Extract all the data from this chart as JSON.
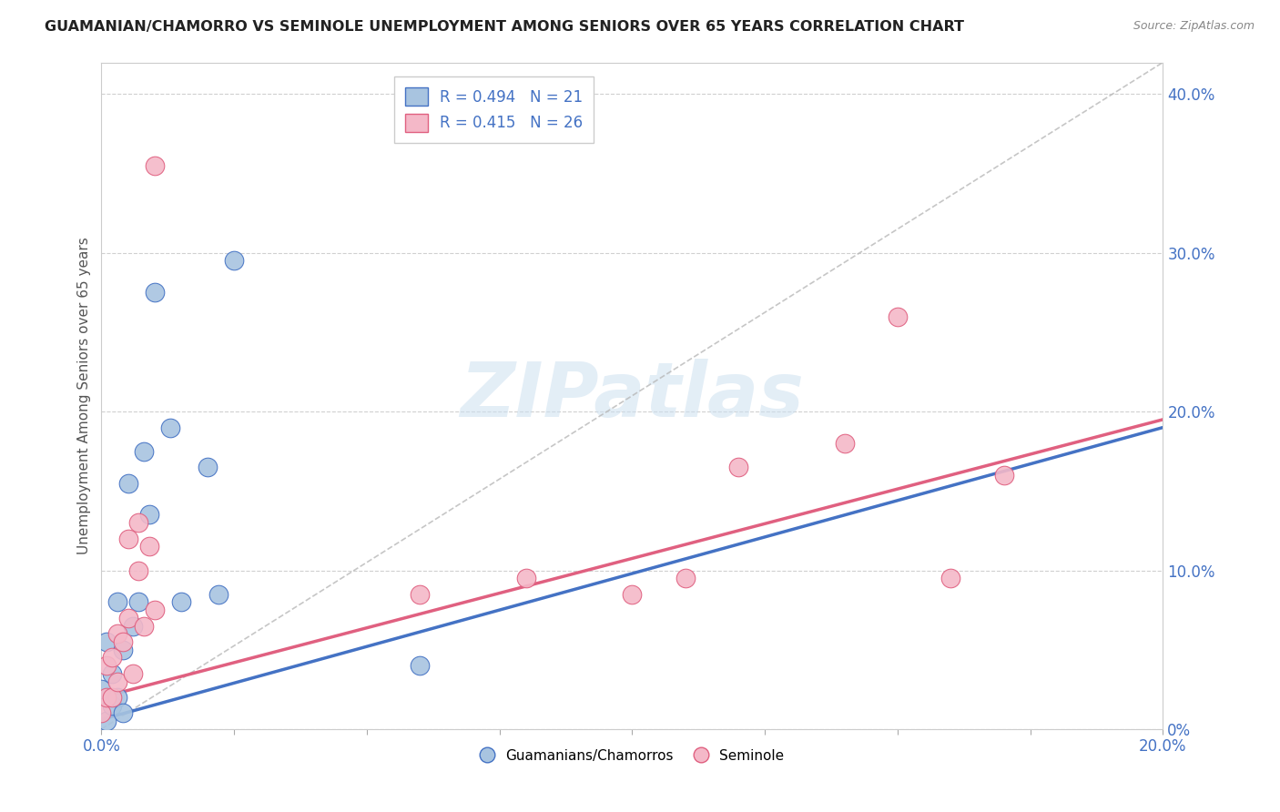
{
  "title": "GUAMANIAN/CHAMORRO VS SEMINOLE UNEMPLOYMENT AMONG SENIORS OVER 65 YEARS CORRELATION CHART",
  "source": "Source: ZipAtlas.com",
  "ylabel": "Unemployment Among Seniors over 65 years",
  "watermark": "ZIPatlas",
  "blue_color": "#a8c4e0",
  "blue_line_color": "#4472c4",
  "pink_color": "#f4b8c8",
  "pink_line_color": "#e06080",
  "dashed_line_color": "#b8b8b8",
  "guamanian_x": [
    0.0,
    0.001,
    0.001,
    0.002,
    0.002,
    0.003,
    0.003,
    0.004,
    0.004,
    0.005,
    0.006,
    0.007,
    0.008,
    0.009,
    0.01,
    0.013,
    0.015,
    0.02,
    0.022,
    0.025,
    0.06
  ],
  "guamanian_y": [
    0.025,
    0.005,
    0.055,
    0.035,
    0.015,
    0.02,
    0.08,
    0.05,
    0.01,
    0.155,
    0.065,
    0.08,
    0.175,
    0.135,
    0.275,
    0.19,
    0.08,
    0.165,
    0.085,
    0.295,
    0.04
  ],
  "seminole_x": [
    0.0,
    0.001,
    0.001,
    0.002,
    0.002,
    0.003,
    0.003,
    0.004,
    0.005,
    0.005,
    0.006,
    0.007,
    0.007,
    0.008,
    0.009,
    0.01,
    0.01,
    0.06,
    0.08,
    0.1,
    0.11,
    0.12,
    0.14,
    0.15,
    0.16,
    0.17
  ],
  "seminole_y": [
    0.01,
    0.02,
    0.04,
    0.02,
    0.045,
    0.03,
    0.06,
    0.055,
    0.07,
    0.12,
    0.035,
    0.1,
    0.13,
    0.065,
    0.115,
    0.075,
    0.355,
    0.085,
    0.095,
    0.085,
    0.095,
    0.165,
    0.18,
    0.26,
    0.095,
    0.16
  ],
  "xmax": 0.2,
  "ymax": 0.42,
  "xmin": 0.0,
  "ymin": 0.0,
  "ytick_positions": [
    0.0,
    0.1,
    0.2,
    0.3,
    0.4
  ],
  "ytick_labels": [
    "0%",
    "10.0%",
    "20.0%",
    "30.0%",
    "40.0%"
  ],
  "xtick_minor_positions": [
    0.0,
    0.025,
    0.05,
    0.075,
    0.1,
    0.125,
    0.15,
    0.175,
    0.2
  ],
  "blue_trendline": [
    0.0,
    0.006,
    0.2,
    0.19
  ],
  "pink_trendline": [
    0.0,
    0.02,
    0.2,
    0.195
  ],
  "diag_line": [
    0.0,
    0.0,
    0.2,
    0.42
  ]
}
